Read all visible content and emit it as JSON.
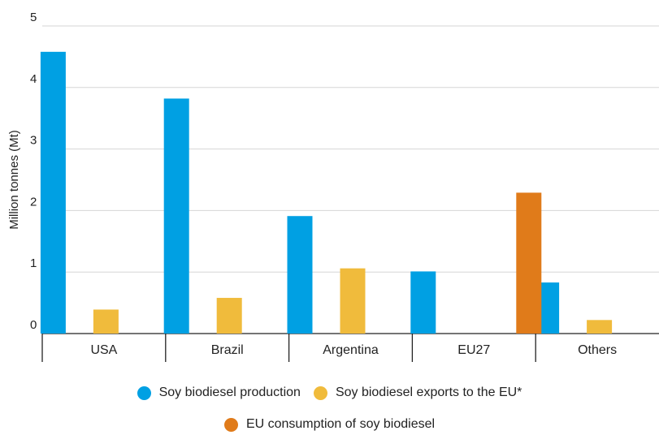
{
  "chart_data": {
    "type": "bar",
    "title": "",
    "xlabel": "",
    "ylabel": "Million tonnes (Mt)",
    "ylim": [
      0,
      5
    ],
    "yticks": [
      "0",
      "1",
      "2",
      "3",
      "4",
      "5"
    ],
    "grid": true,
    "legend_position": "bottom",
    "categories": [
      "USA",
      "Brazil",
      "Argentina",
      "EU27",
      "Others"
    ],
    "series": [
      {
        "name": "Soy biodiesel production",
        "color": "#00a0e3",
        "values": [
          4.58,
          3.82,
          1.91,
          1.01,
          0.83
        ]
      },
      {
        "name": "Soy biodiesel exports to the EU*",
        "color": "#f0bb3c",
        "values": [
          0.39,
          0.58,
          1.06,
          null,
          0.22
        ]
      },
      {
        "name": "EU consumption of soy biodiesel",
        "color": "#e07b1a",
        "values": [
          null,
          null,
          null,
          2.29,
          null
        ]
      }
    ]
  }
}
